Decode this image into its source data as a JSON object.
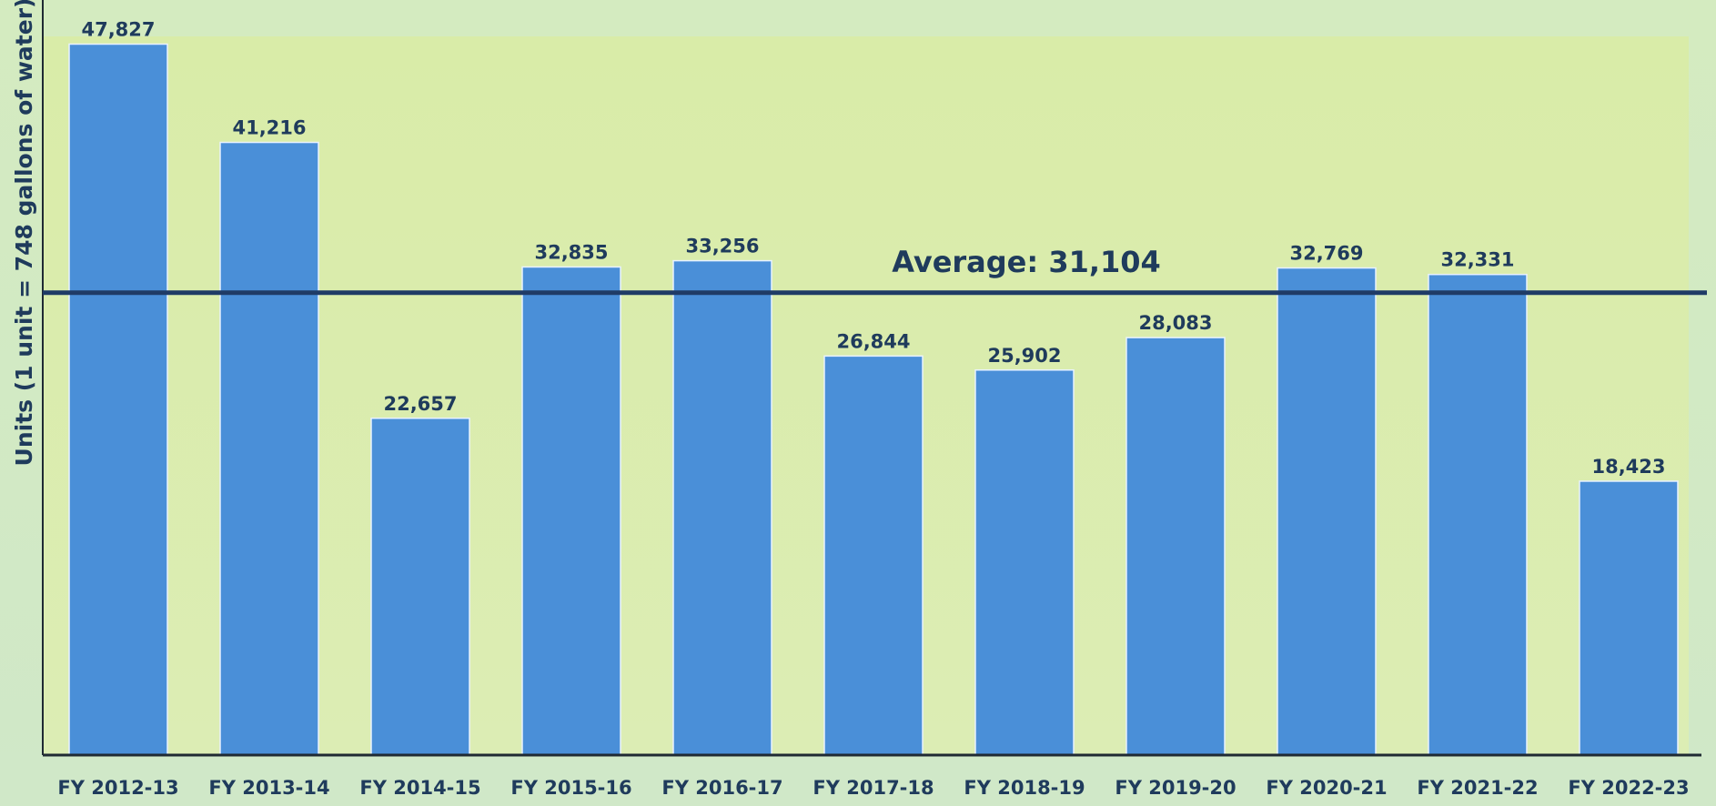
{
  "chart_data": {
    "type": "bar",
    "y_label": "Units (1 unit = 748 gallons of water)",
    "categories": [
      "FY 2012-13",
      "FY 2013-14",
      "FY 2014-15",
      "FY 2015-16",
      "FY 2016-17",
      "FY 2017-18",
      "FY 2018-19",
      "FY 2019-20",
      "FY 2020-21",
      "FY 2021-22",
      "FY 2022-23"
    ],
    "values": [
      47827,
      41216,
      22657,
      32835,
      33256,
      26844,
      25902,
      28083,
      32769,
      32331,
      18423
    ],
    "value_labels": [
      "47,827",
      "41,216",
      "22,657",
      "32,835",
      "33,256",
      "26,844",
      "25,902",
      "28,083",
      "32,769",
      "32,331",
      "18,423"
    ],
    "color": "#4a8fd8",
    "ylim": [
      0,
      50000
    ],
    "average_line": {
      "value": 31104,
      "label": "Average: 31,104",
      "color": "#1f3b66"
    }
  }
}
